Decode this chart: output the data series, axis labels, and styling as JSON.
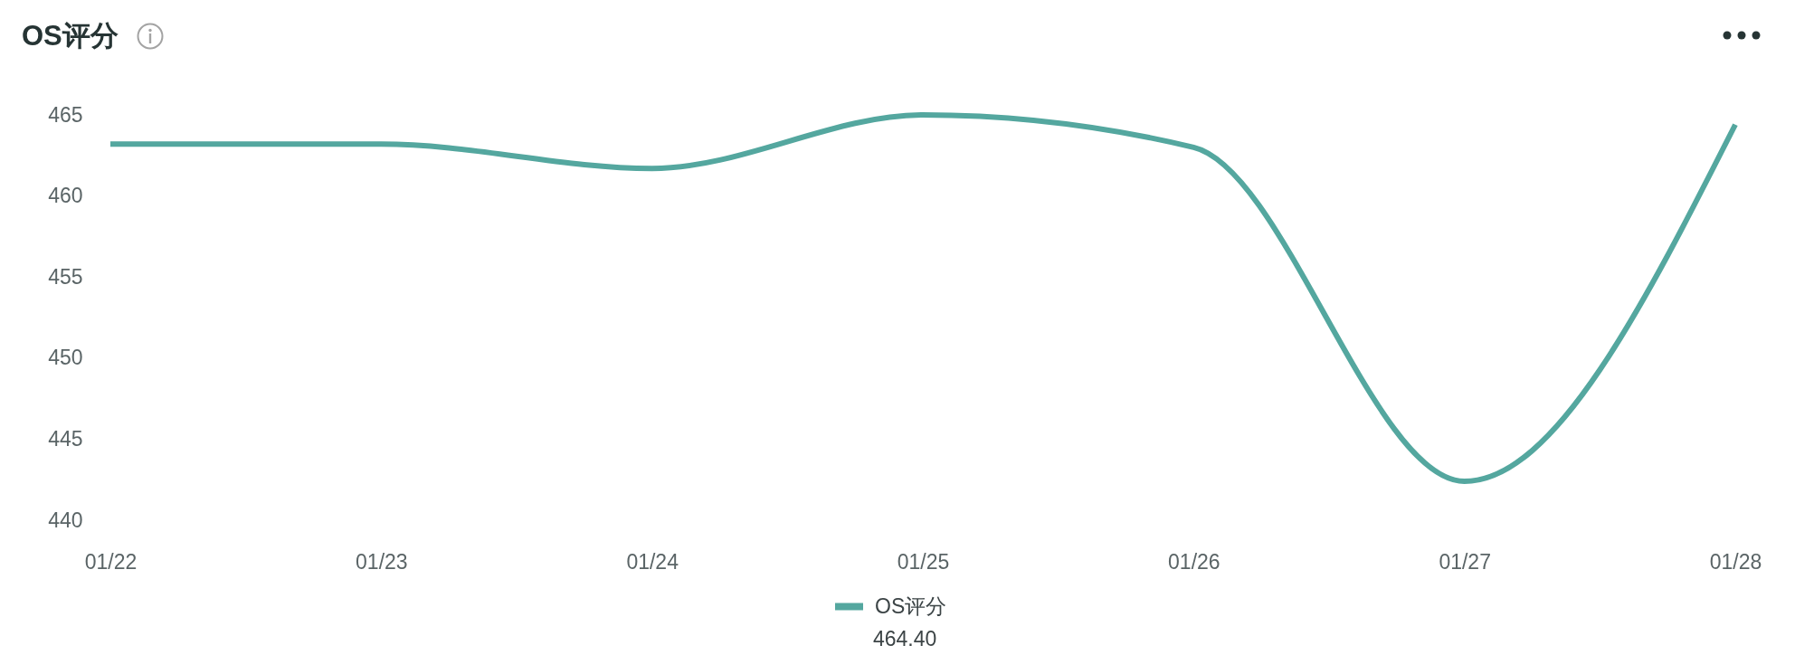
{
  "chart_data": {
    "type": "line",
    "title": "OS评分",
    "categories": [
      "01/22",
      "01/23",
      "01/24",
      "01/25",
      "01/26",
      "01/27",
      "01/28"
    ],
    "series": [
      {
        "name": "OS评分",
        "color": "#54a79f",
        "values": [
          463.2,
          463.2,
          461.7,
          465.0,
          463.0,
          442.4,
          464.4
        ]
      }
    ],
    "ylim": [
      440,
      465
    ],
    "yticks": [
      440,
      445,
      450,
      455,
      460,
      465
    ],
    "grid": false,
    "legend": "bottom",
    "line_style": "solid",
    "annotations": [
      "464.40"
    ]
  }
}
